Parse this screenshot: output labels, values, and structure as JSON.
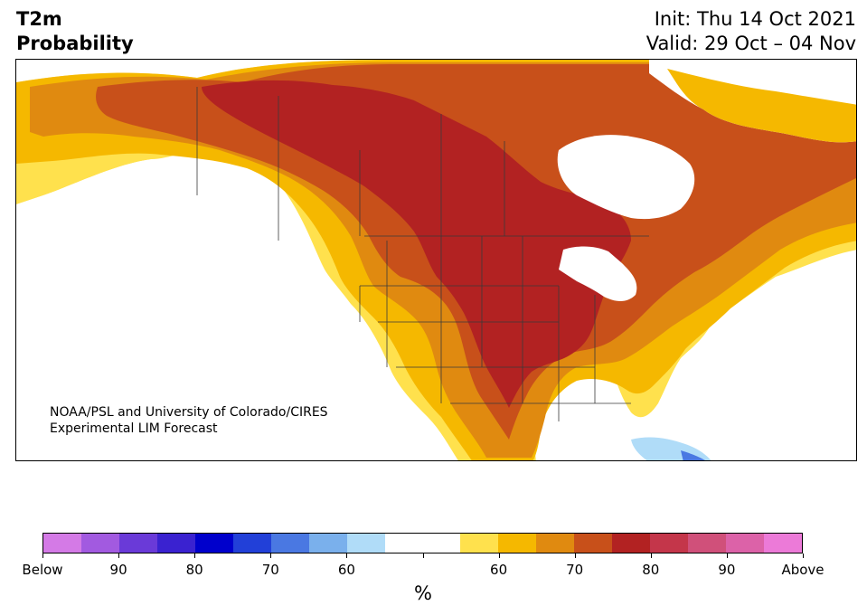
{
  "header": {
    "title_line1": "T2m",
    "title_line2": "Probability",
    "init_line": "Init: Thu 14 Oct 2021",
    "valid_line": "Valid: 29 Oct – 04 Nov"
  },
  "map": {
    "credit_line1": "NOAA/PSL and University of Colorado/CIRES",
    "credit_line2": "Experimental LIM Forecast",
    "colors": {
      "above_55_60": "#ffe14d",
      "above_60_65": "#f5b800",
      "above_65_70": "#e08a10",
      "above_70_75": "#c8501a",
      "above_75_80": "#b22222",
      "below_55_60": "#b0dcf8",
      "below_60_65": "#7ab0ec",
      "below_65_70": "#4a78e2"
    }
  },
  "colorbar": {
    "unit": "%",
    "colors": [
      "#d47ae6",
      "#a25ae0",
      "#6a3ad8",
      "#3a22d0",
      "#0000cc",
      "#2240d8",
      "#4a78e2",
      "#7ab0ec",
      "#b0dcf8",
      "#ffffff",
      "#ffffff",
      "#ffe14d",
      "#f5b800",
      "#e08a10",
      "#c8501a",
      "#b22222",
      "#c4364a",
      "#d0507a",
      "#dc62a8",
      "#ec7ad8"
    ],
    "tick_labels": [
      "Below",
      "90",
      "80",
      "70",
      "60",
      "",
      "60",
      "70",
      "80",
      "90",
      "Above"
    ]
  }
}
